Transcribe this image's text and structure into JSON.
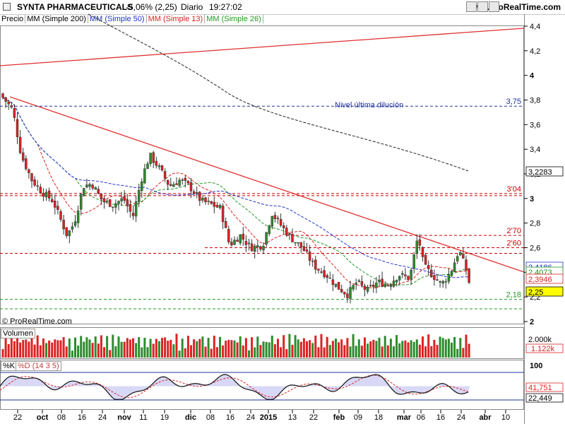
{
  "header": {
    "name": "SYNTA PHARMACEUTICALS",
    "change": "-5,06% (2,25)",
    "period": "Diario",
    "time": "19:27:02",
    "site": "www.ProRealTime.com"
  },
  "legend": {
    "price": "Precio",
    "ma200": "MM (Simple 200)",
    "ma50": "MM (Simple 50)",
    "ma13": "MM (Simple 13)",
    "ma26": "MM (Simple 26)"
  },
  "colors": {
    "up": "#2e8b2e",
    "down": "#e02020",
    "ma200": "#222222",
    "ma50": "#2233cc",
    "ma13": "#dd2222",
    "ma26": "#229922",
    "level": "#cc0000",
    "volume": "#dd2222",
    "stoch": "#223399",
    "stoch_fill": "#b8b8ee",
    "stoch_signal": "#dd2222"
  },
  "copyright": "© ProRealTime.com",
  "panels": {
    "volume_label": "Volumen",
    "stoch_label_k": "%K",
    "stoch_label_d": "%D (14 3 5)",
    "volume_ticks": [
      "2.000k"
    ],
    "volume_current": "1.122k",
    "stoch_ticks": [
      "100"
    ],
    "stoch_values": [
      "41,751",
      "22,449"
    ]
  },
  "chart_data": {
    "type": "candlestick",
    "price_axis": {
      "ticks": [
        "4,4",
        "4,2",
        "4",
        "3,8",
        "3,6",
        "3,4",
        "3,2",
        "3",
        "2,8",
        "2,6",
        "2,4",
        "2,2",
        "2"
      ],
      "ylim": [
        2.0,
        4.4
      ]
    },
    "price_labels": [
      "3,2283",
      "2,4186",
      "2,4073",
      "2,3946",
      "2,25"
    ],
    "x_ticks": [
      "22",
      "oct",
      "08",
      "16",
      "24",
      "nov",
      "11",
      "19",
      "dic",
      "08",
      "16",
      "24",
      "2015",
      "13",
      "22",
      "feb",
      "09",
      "18",
      "mar",
      "06",
      "16",
      "24",
      "abr",
      "10"
    ],
    "levels": [
      {
        "value": 3.75,
        "label": "3,75"
      },
      {
        "value": 3.04,
        "label": "3'04"
      },
      {
        "value": 2.7,
        "label": "2'70"
      },
      {
        "value": 2.6,
        "label": "2'60"
      },
      {
        "value": 2.18,
        "label": "2,18"
      }
    ],
    "annotation": "Nivel última dilución"
  }
}
